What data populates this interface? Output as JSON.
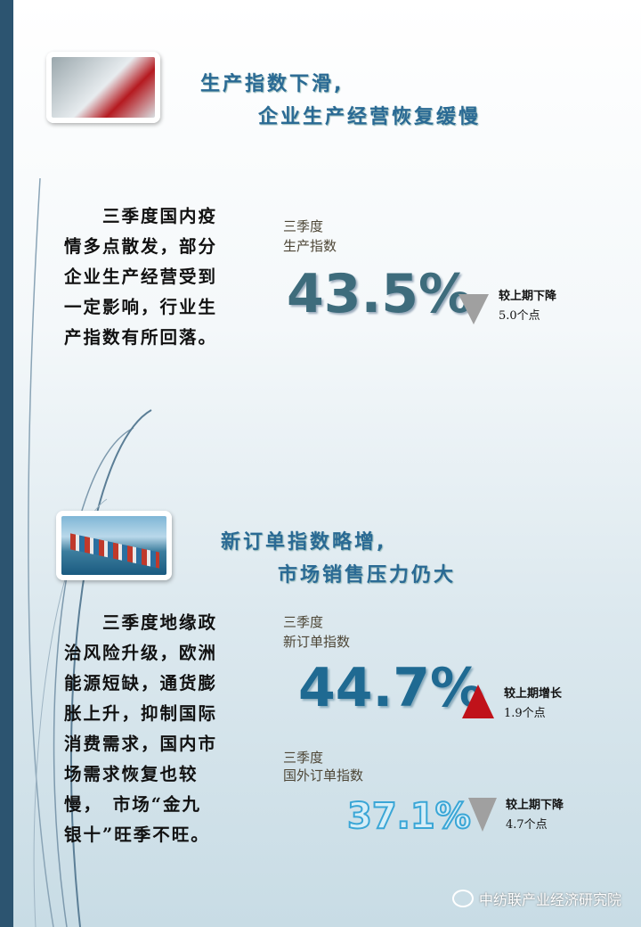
{
  "section1": {
    "title_line1": "生产指数下滑,",
    "title_line2": "企业生产经营恢复缓慢",
    "body": "　　三季度国内疫情多点散发，部分企业生产经营受到一定影响，行业生产指数有所回落。",
    "label1": "三季度",
    "label2": "生产指数",
    "value": "43.5%",
    "direction": "down",
    "change1": "较上期下降",
    "change2": "5.0个点"
  },
  "section2": {
    "title_line1": "新订单指数略增,",
    "title_line2": "市场销售压力仍大",
    "body": "　　三季度地缘政治风险升级，欧洲能源短缺，通货膨胀上升，抑制国际消费需求，国内市场需求恢复也较慢，　市场“金九银十”旺季不旺。",
    "index1": {
      "label1": "三季度",
      "label2": "新订单指数",
      "value": "44.7%",
      "direction": "up",
      "change1": "较上期增长",
      "change2": "1.9个点"
    },
    "index2": {
      "label1": "三季度",
      "label2": "国外订单指数",
      "value": "37.1%",
      "direction": "down",
      "change1": "较上期下降",
      "change2": "4.7个点"
    }
  },
  "watermark": "中纺联产业经济研究院",
  "colors": {
    "stripe": "#2c5470",
    "title": "#2a6a94",
    "down": "#a0a0a0",
    "up": "#c0121a"
  }
}
